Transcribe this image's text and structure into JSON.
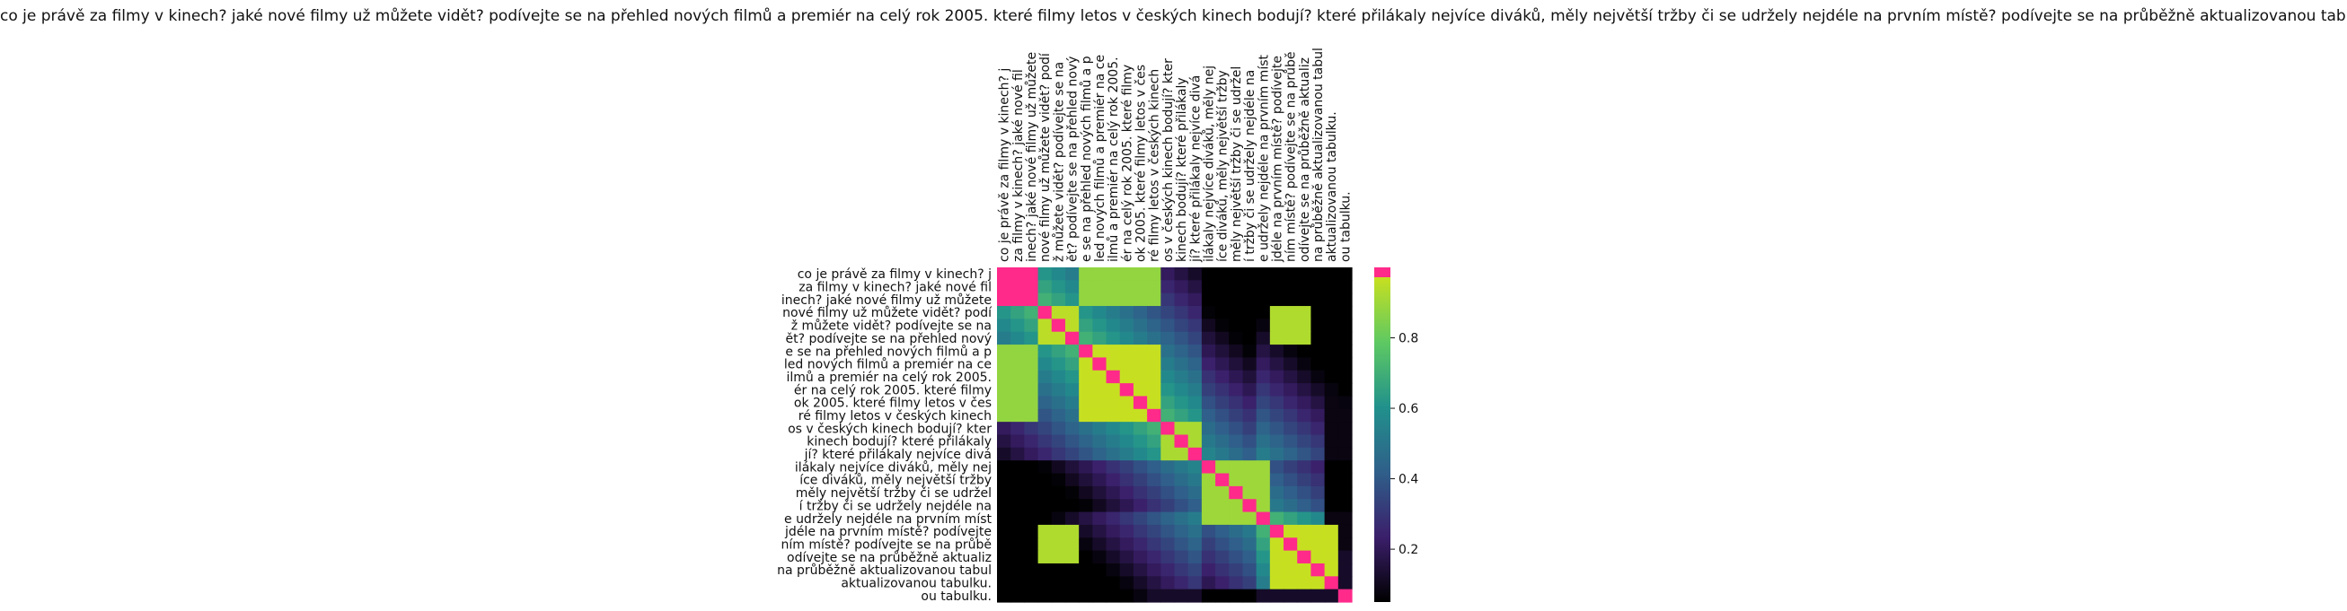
{
  "chart_data": {
    "type": "heatmap",
    "title": "co je právě za filmy v kinech? jaké nové filmy už můžete vidět? podívejte se na přehled nových filmů a premiér na celý rok 2005. které filmy letos v českých kinech bodují? které přilákaly nejvíce diváků, měly největší tržby či se udržely nejdéle na prvním místě? podívejte se na průběžně aktualizovanou tabulku.",
    "tick_labels": [
      "co je právě za filmy v kinech? j",
      "za filmy v kinech? jaké nové fil",
      "inech? jaké nové filmy už můžete",
      "nové filmy už můžete vidět? podí",
      "ž můžete vidět? podívejte se na",
      "ět? podívejte se na přehled nový",
      "e se na přehled nových filmů a p",
      "led nových filmů a premiér na ce",
      "ilmů a premiér na celý rok 2005.",
      "ér na celý rok 2005. které filmy",
      "ok 2005. které filmy letos v čes",
      "ré filmy letos v českých kinech",
      "os v českých kinech bodují? kter",
      "kinech bodují? které přilákaly",
      "jí? které přilákaly nejvíce divá",
      "ilákaly nejvíce diváků, měly nej",
      "íce diváků, měly největší tržby",
      "měly největší tržby či se udržel",
      "í tržby či se udržely nejdéle na",
      "e udržely nejdéle na prvním míst",
      "jdéle na prvním místě? podívejte",
      "ním místě? podívejte se na průbě",
      "odívejte se na průběžně aktualiz",
      "na průběžně aktualizovanou tabul",
      "aktualizovanou tabulku.",
      "ou tabulku."
    ],
    "colorbar": {
      "ticks": [
        0.2,
        0.4,
        0.6,
        0.8
      ],
      "min": 0.05,
      "max": 1.0
    },
    "colormap": [
      "#000000",
      "#3b1f6b",
      "#2f5f8a",
      "#21918c",
      "#5ec962",
      "#c7e020",
      "#ff2a8a"
    ],
    "blocks": [
      {
        "rows": [
          0,
          2
        ],
        "cols": [
          0,
          2
        ],
        "value": 1.0
      },
      {
        "rows": [
          3,
          5
        ],
        "cols": [
          3,
          5
        ],
        "value": 0.95
      },
      {
        "rows": [
          6,
          11
        ],
        "cols": [
          6,
          11
        ],
        "value": 0.97
      },
      {
        "rows": [
          12,
          14
        ],
        "cols": [
          12,
          14
        ],
        "value": 0.92
      },
      {
        "rows": [
          15,
          19
        ],
        "cols": [
          15,
          19
        ],
        "value": 0.9
      },
      {
        "rows": [
          20,
          24
        ],
        "cols": [
          20,
          24
        ],
        "value": 0.97
      },
      {
        "rows": [
          3,
          5
        ],
        "cols": [
          20,
          22
        ],
        "value": 0.93
      },
      {
        "rows": [
          20,
          22
        ],
        "cols": [
          3,
          5
        ],
        "value": 0.93
      },
      {
        "rows": [
          0,
          2
        ],
        "cols": [
          6,
          11
        ],
        "value": 0.88
      },
      {
        "rows": [
          6,
          11
        ],
        "cols": [
          0,
          2
        ],
        "value": 0.88
      }
    ]
  }
}
